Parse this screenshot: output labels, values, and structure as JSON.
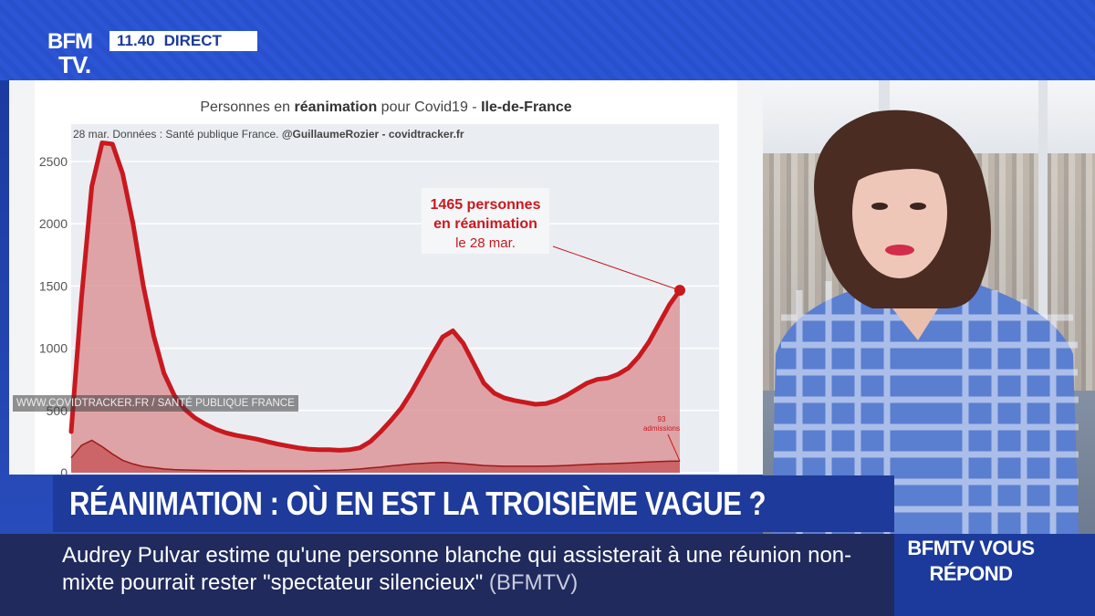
{
  "broadcast": {
    "logo_line1": "BFM",
    "logo_line2": "TV.",
    "time": "11.40",
    "live_label": "DIRECT"
  },
  "watermark": "WWW.COVIDTRACKER.FR / SANTÉ PUBLIQUE FRANCE",
  "chart_data": {
    "type": "area",
    "title_prefix": "Personnes en ",
    "title_bold": "réanimation",
    "title_mid": " pour Covid19 - ",
    "title_region": "Ile-de-France",
    "source_prefix": "28 mar. Données : Santé publique France. ",
    "source_bold": "@GuillaumeRozier - covidtracker.fr",
    "y_ticks": [
      "2500",
      "2000",
      "1500",
      "1000",
      "500",
      "0"
    ],
    "ylim": [
      0,
      2800
    ],
    "grid": true,
    "annotation": {
      "line1": "1465 personnes",
      "line2": "en réanimation",
      "line3": "le 28 mar."
    },
    "admissions_label_value": "93",
    "admissions_label_text": "admissions",
    "series": [
      {
        "name": "réanimation",
        "color": "#c8191f",
        "values": [
          330,
          1400,
          2300,
          2650,
          2640,
          2400,
          2000,
          1500,
          1100,
          800,
          620,
          510,
          440,
          390,
          350,
          320,
          300,
          285,
          270,
          250,
          230,
          215,
          200,
          190,
          185,
          185,
          180,
          185,
          200,
          250,
          330,
          420,
          520,
          650,
          800,
          950,
          1090,
          1140,
          1040,
          880,
          720,
          640,
          600,
          580,
          565,
          550,
          555,
          580,
          620,
          670,
          720,
          750,
          760,
          790,
          840,
          930,
          1050,
          1200,
          1350,
          1465
        ]
      },
      {
        "name": "admissions",
        "color": "#c8191f",
        "values": [
          120,
          220,
          260,
          210,
          150,
          100,
          70,
          50,
          40,
          30,
          25,
          22,
          20,
          18,
          17,
          16,
          16,
          15,
          15,
          15,
          15,
          15,
          15,
          15,
          16,
          18,
          20,
          25,
          30,
          38,
          45,
          55,
          62,
          70,
          75,
          80,
          82,
          78,
          72,
          65,
          58,
          55,
          52,
          52,
          52,
          52,
          53,
          55,
          58,
          62,
          66,
          70,
          72,
          75,
          78,
          82,
          86,
          90,
          92,
          93
        ]
      }
    ]
  },
  "headline": "RÉANIMATION : OÙ EN EST LA TROISIÈME VAGUE ?",
  "ticker": {
    "text": "Audrey Pulvar estime qu'une personne blanche qui assisterait à une réunion non-mixte pourrait rester \"spectateur silencieux\"",
    "source": "(BFMTV)"
  },
  "program": {
    "line1": "BFMTV VOUS",
    "line2": "RÉPOND"
  },
  "colors": {
    "brand_blue": "#1e3a9a",
    "ticker_navy": "#202a5c",
    "series_red": "#c8191f"
  }
}
